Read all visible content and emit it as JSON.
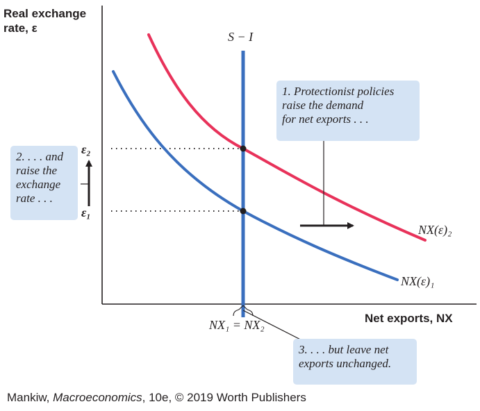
{
  "axes": {
    "y_title_lines": [
      "Real exchange",
      "rate, ε"
    ],
    "x_title": "Net exports, NX"
  },
  "curves": {
    "supply_label": "S − I",
    "nx2_label": "NX(ε)₂",
    "nx1_label": "NX(ε)₁"
  },
  "ticks": {
    "eps2": "ε₂",
    "eps1": "ε₁",
    "nx_equal": "NX₁ = NX₂"
  },
  "notes": {
    "note1_lines": [
      "1. Protectionist policies",
      "raise the demand",
      "for net exports . . ."
    ],
    "note2_lines": [
      "2. . . . and",
      "raise the",
      "exchange",
      "rate . . ."
    ],
    "note3_lines": [
      "3. . . . but leave net",
      "exports unchanged."
    ]
  },
  "credit": {
    "author": "Mankiw, ",
    "book": "Macroeconomics",
    "rest": ", 10e, © 2019 Worth Publishers"
  },
  "colors": {
    "nx1_curve": "#3a6fbe",
    "nx2_curve": "#e8325a",
    "supply_line": "#3a6fbe",
    "note_box": "#d4e3f4",
    "axis": "#231f20"
  }
}
